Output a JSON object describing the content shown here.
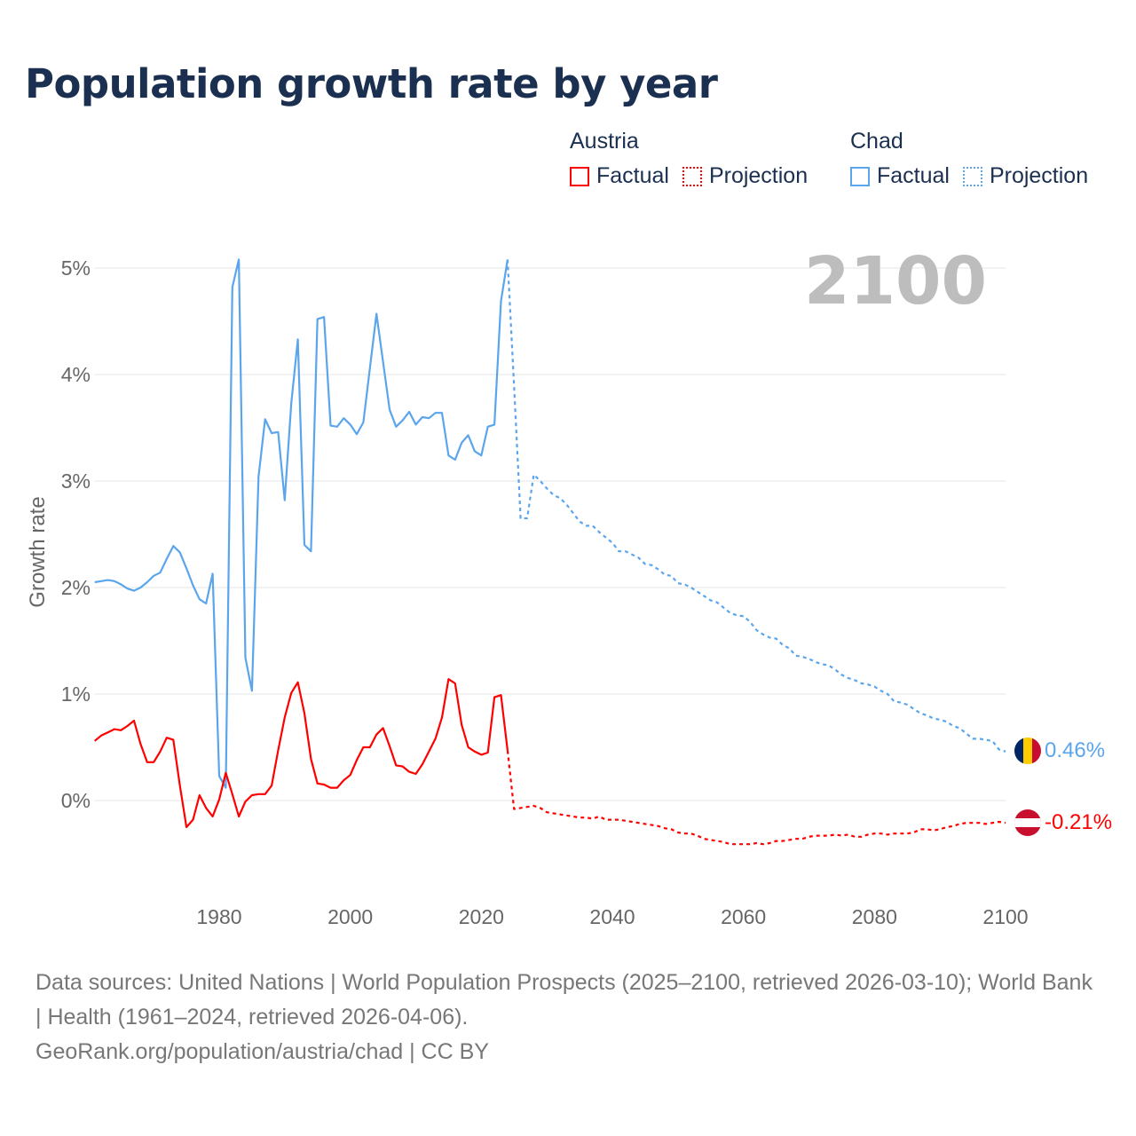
{
  "title": "Population growth rate by year",
  "legend": {
    "groups": [
      {
        "name": "Austria",
        "factual": "Factual",
        "projection": "Projection",
        "color": "#ff0000"
      },
      {
        "name": "Chad",
        "factual": "Factual",
        "projection": "Projection",
        "color": "#5aa5ec"
      }
    ]
  },
  "year_label": "2100",
  "end_labels": {
    "chad": "0.46%",
    "austria": "-0.21%"
  },
  "footer": {
    "sources": "Data sources: United Nations | World Population Prospects (2025–2100, retrieved 2026-03-10); World Bank | Health (1961–2024, retrieved 2026-04-06).",
    "credit": "GeoRank.org/population/austria/chad | CC BY"
  },
  "chart_data": {
    "type": "line",
    "title": "Population growth rate by year",
    "xlabel": "",
    "ylabel": "Growth rate",
    "xlim": [
      1961,
      2100
    ],
    "ylim": [
      -0.8,
      5.2
    ],
    "x_ticks": [
      "1980",
      "2000",
      "2020",
      "2040",
      "2060",
      "2080",
      "2100"
    ],
    "y_ticks": [
      "0%",
      "1%",
      "2%",
      "3%",
      "4%",
      "5%"
    ],
    "grid": true,
    "legend_position": "top-right",
    "series": [
      {
        "name": "Chad",
        "kind": "factual",
        "color": "#5aa5ec",
        "start": 1961,
        "values": [
          2.05,
          2.06,
          2.07,
          2.06,
          2.03,
          1.99,
          1.97,
          2.0,
          2.05,
          2.11,
          2.14,
          2.27,
          2.39,
          2.33,
          2.18,
          2.02,
          1.89,
          1.85,
          2.13,
          0.23,
          0.12,
          4.82,
          5.08,
          1.34,
          1.03,
          3.04,
          3.58,
          3.45,
          3.46,
          2.82,
          3.73,
          4.33,
          2.4,
          2.34,
          4.52,
          4.54,
          3.52,
          3.51,
          3.59,
          3.53,
          3.44,
          3.55,
          4.06,
          4.57,
          4.12,
          3.67,
          3.51,
          3.57,
          3.65,
          3.53,
          3.6,
          3.59,
          3.64,
          3.64,
          3.24,
          3.2,
          3.36,
          3.43,
          3.28,
          3.24,
          3.51,
          3.53,
          4.69,
          5.08
        ]
      },
      {
        "name": "Chad",
        "kind": "projection",
        "color": "#5aa5ec",
        "start": 2024,
        "values": [
          5.08,
          3.9,
          2.65,
          2.65,
          3.06,
          3.0,
          2.93,
          2.87,
          2.84,
          2.78,
          2.7,
          2.62,
          2.58,
          2.58,
          2.52,
          2.47,
          2.42,
          2.34,
          2.34,
          2.31,
          2.28,
          2.22,
          2.21,
          2.17,
          2.12,
          2.11,
          2.04,
          2.03,
          2.0,
          1.96,
          1.92,
          1.88,
          1.86,
          1.81,
          1.76,
          1.74,
          1.73,
          1.68,
          1.6,
          1.56,
          1.53,
          1.52,
          1.46,
          1.43,
          1.36,
          1.35,
          1.33,
          1.3,
          1.28,
          1.27,
          1.23,
          1.18,
          1.15,
          1.13,
          1.1,
          1.09,
          1.07,
          1.03,
          1.0,
          0.93,
          0.92,
          0.9,
          0.86,
          0.82,
          0.8,
          0.77,
          0.76,
          0.74,
          0.7,
          0.68,
          0.63,
          0.58,
          0.58,
          0.57,
          0.56,
          0.48,
          0.46
        ]
      },
      {
        "name": "Austria",
        "kind": "factual",
        "color": "#ff0000",
        "start": 1961,
        "values": [
          0.56,
          0.61,
          0.64,
          0.67,
          0.66,
          0.7,
          0.75,
          0.53,
          0.36,
          0.36,
          0.46,
          0.59,
          0.57,
          0.14,
          -0.25,
          -0.18,
          0.05,
          -0.07,
          -0.15,
          0.01,
          0.26,
          0.06,
          -0.15,
          -0.01,
          0.05,
          0.06,
          0.06,
          0.14,
          0.47,
          0.78,
          1.01,
          1.11,
          0.82,
          0.39,
          0.16,
          0.15,
          0.12,
          0.12,
          0.19,
          0.24,
          0.38,
          0.5,
          0.5,
          0.62,
          0.68,
          0.51,
          0.33,
          0.32,
          0.27,
          0.25,
          0.34,
          0.46,
          0.58,
          0.78,
          1.14,
          1.1,
          0.71,
          0.5,
          0.46,
          0.43,
          0.45,
          0.97,
          0.99,
          0.47
        ]
      },
      {
        "name": "Austria",
        "kind": "projection",
        "color": "#ff0000",
        "start": 2024,
        "values": [
          0.47,
          -0.08,
          -0.07,
          -0.06,
          -0.05,
          -0.07,
          -0.11,
          -0.12,
          -0.13,
          -0.14,
          -0.15,
          -0.16,
          -0.16,
          -0.17,
          -0.15,
          -0.18,
          -0.18,
          -0.18,
          -0.19,
          -0.2,
          -0.21,
          -0.22,
          -0.23,
          -0.24,
          -0.26,
          -0.27,
          -0.3,
          -0.31,
          -0.31,
          -0.33,
          -0.36,
          -0.37,
          -0.38,
          -0.39,
          -0.41,
          -0.41,
          -0.41,
          -0.41,
          -0.4,
          -0.41,
          -0.4,
          -0.38,
          -0.38,
          -0.37,
          -0.36,
          -0.36,
          -0.34,
          -0.33,
          -0.33,
          -0.33,
          -0.32,
          -0.33,
          -0.32,
          -0.34,
          -0.34,
          -0.32,
          -0.31,
          -0.31,
          -0.32,
          -0.31,
          -0.31,
          -0.31,
          -0.3,
          -0.27,
          -0.27,
          -0.28,
          -0.27,
          -0.25,
          -0.24,
          -0.22,
          -0.21,
          -0.21,
          -0.21,
          -0.22,
          -0.21,
          -0.2,
          -0.21
        ]
      }
    ]
  }
}
